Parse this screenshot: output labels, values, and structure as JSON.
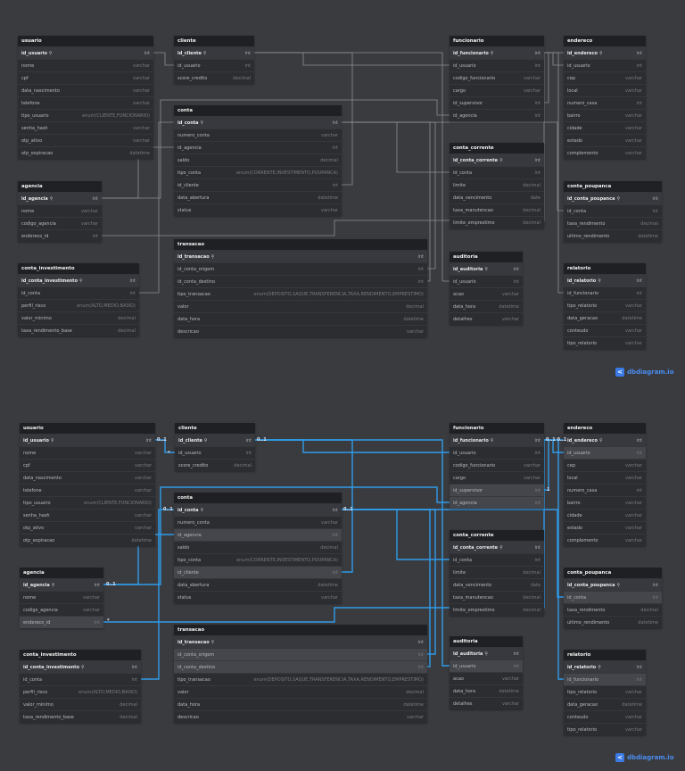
{
  "tables": {
    "usuario": {
      "title": "usuario",
      "rows": [
        {
          "name": "id_usuario",
          "type": "int",
          "pk": true
        },
        {
          "name": "nome",
          "type": "varchar"
        },
        {
          "name": "cpf",
          "type": "varchar"
        },
        {
          "name": "data_nascimento",
          "type": "varchar"
        },
        {
          "name": "telefone",
          "type": "varchar"
        },
        {
          "name": "tipo_usuario",
          "type": "enum(CLIENTE,FUNCIONARIO)"
        },
        {
          "name": "senha_hash",
          "type": "varchar"
        },
        {
          "name": "otp_ativo",
          "type": "varchar"
        },
        {
          "name": "otp_expiracao",
          "type": "datetime"
        }
      ]
    },
    "cliente": {
      "title": "cliente",
      "rows": [
        {
          "name": "id_cliente",
          "type": "int",
          "pk": true
        },
        {
          "name": "id_usuario",
          "type": "int"
        },
        {
          "name": "score_credito",
          "type": "decimal"
        }
      ]
    },
    "conta": {
      "title": "conta",
      "rows": [
        {
          "name": "id_conta",
          "type": "int",
          "pk": true
        },
        {
          "name": "numero_conta",
          "type": "varchar"
        },
        {
          "name": "id_agencia",
          "type": "int"
        },
        {
          "name": "saldo",
          "type": "decimal"
        },
        {
          "name": "tipo_conta",
          "type": "enum(CORRENTE,INVESTIMENTO,POUPANCA)"
        },
        {
          "name": "id_cliente",
          "type": "int"
        },
        {
          "name": "data_abertura",
          "type": "datetime"
        },
        {
          "name": "status",
          "type": "varchar"
        }
      ]
    },
    "funcionario": {
      "title": "funcionario",
      "rows": [
        {
          "name": "id_funcionario",
          "type": "int",
          "pk": true
        },
        {
          "name": "id_usuario",
          "type": "int"
        },
        {
          "name": "codigo_funcionario",
          "type": "varchar"
        },
        {
          "name": "cargo",
          "type": "varchar"
        },
        {
          "name": "id_supervisor",
          "type": "int"
        },
        {
          "name": "id_agencia",
          "type": "int"
        }
      ]
    },
    "endereco": {
      "title": "endereco",
      "rows": [
        {
          "name": "id_endereco",
          "type": "int",
          "pk": true
        },
        {
          "name": "id_usuario",
          "type": "int"
        },
        {
          "name": "cep",
          "type": "varchar"
        },
        {
          "name": "local",
          "type": "varchar"
        },
        {
          "name": "numero_casa",
          "type": "int"
        },
        {
          "name": "bairro",
          "type": "varchar"
        },
        {
          "name": "cidade",
          "type": "varchar"
        },
        {
          "name": "estado",
          "type": "varchar"
        },
        {
          "name": "complemento",
          "type": "varchar"
        }
      ]
    },
    "agencia": {
      "title": "agencia",
      "rows": [
        {
          "name": "id_agencia",
          "type": "int",
          "pk": true
        },
        {
          "name": "nome",
          "type": "varchar"
        },
        {
          "name": "codigo_agencia",
          "type": "varchar"
        },
        {
          "name": "endereco_id",
          "type": "int"
        }
      ]
    },
    "conta_corrente": {
      "title": "conta_corrente",
      "rows": [
        {
          "name": "id_conta_corrente",
          "type": "int",
          "pk": true
        },
        {
          "name": "id_conta",
          "type": "int"
        },
        {
          "name": "limite",
          "type": "decimal"
        },
        {
          "name": "data_vencimento",
          "type": "date"
        },
        {
          "name": "taxa_manutencao",
          "type": "decimal"
        },
        {
          "name": "limite_emprestimo",
          "type": "decimal"
        }
      ]
    },
    "conta_poupanca": {
      "title": "conta_poupanca",
      "rows": [
        {
          "name": "id_conta_poupanca",
          "type": "int",
          "pk": true
        },
        {
          "name": "id_conta",
          "type": "int"
        },
        {
          "name": "taxa_rendimento",
          "type": "decimal"
        },
        {
          "name": "ultimo_rendimento",
          "type": "datetime"
        }
      ]
    },
    "conta_investimento": {
      "title": "conta_investimento",
      "rows": [
        {
          "name": "id_conta_investimento",
          "type": "int",
          "pk": true
        },
        {
          "name": "id_conta",
          "type": "int"
        },
        {
          "name": "perfil_risco",
          "type": "enum(ALTO,MEDIO,BAIXO)"
        },
        {
          "name": "valor_minimo",
          "type": "decimal"
        },
        {
          "name": "taxa_rendimento_base",
          "type": "decimal"
        }
      ]
    },
    "transacao": {
      "title": "transacao",
      "rows": [
        {
          "name": "id_transacao",
          "type": "int",
          "pk": true
        },
        {
          "name": "id_conta_origem",
          "type": "int"
        },
        {
          "name": "id_conta_destino",
          "type": "int"
        },
        {
          "name": "tipo_transacao",
          "type": "enum(DEPOSITO,SAQUE,TRANSFERENCIA,TAXA,RENDIMENTO,EMPRESTIMO)"
        },
        {
          "name": "valor",
          "type": "decimal"
        },
        {
          "name": "data_hora",
          "type": "datetime"
        },
        {
          "name": "descricao",
          "type": "varchar"
        }
      ]
    },
    "auditoria": {
      "title": "auditoria",
      "rows": [
        {
          "name": "id_auditoria",
          "type": "int",
          "pk": true
        },
        {
          "name": "id_usuario",
          "type": "int"
        },
        {
          "name": "acao",
          "type": "varchar"
        },
        {
          "name": "data_hora",
          "type": "datetime"
        },
        {
          "name": "detalhes",
          "type": "varchar"
        }
      ]
    },
    "relatorio": {
      "title": "relatorio",
      "rows": [
        {
          "name": "id_relatorio",
          "type": "int",
          "pk": true
        },
        {
          "name": "id_funcionario",
          "type": "int"
        },
        {
          "name": "tipo_relatorio",
          "type": "varchar"
        },
        {
          "name": "data_geracao",
          "type": "datetime"
        },
        {
          "name": "conteudo",
          "type": "varchar"
        },
        {
          "name": "tipo_relatorio",
          "type": "varchar"
        }
      ]
    }
  },
  "highlighted": {
    "conta": [
      2,
      5
    ],
    "funcionario": [
      4,
      5
    ],
    "agencia": [
      3
    ],
    "transacao": [
      1,
      2
    ],
    "auditoria": [
      1
    ],
    "conta_poupanca": [
      1
    ],
    "relatorio": [
      1
    ],
    "endereco": [
      1
    ]
  },
  "cardinality": {
    "zero_one": "0..1",
    "one": "1",
    "many": "*",
    "zero_one_pair": "0..1 0..1"
  },
  "brand": {
    "name": "dbdiagram.io",
    "icon": "share-icon"
  },
  "colors": {
    "background": "#3a3b3f",
    "table": "#2c2d31",
    "header": "#1f2023",
    "link_gray": "#8e8f94",
    "link_blue": "#2f9be8",
    "brand": "#4b8df0"
  }
}
